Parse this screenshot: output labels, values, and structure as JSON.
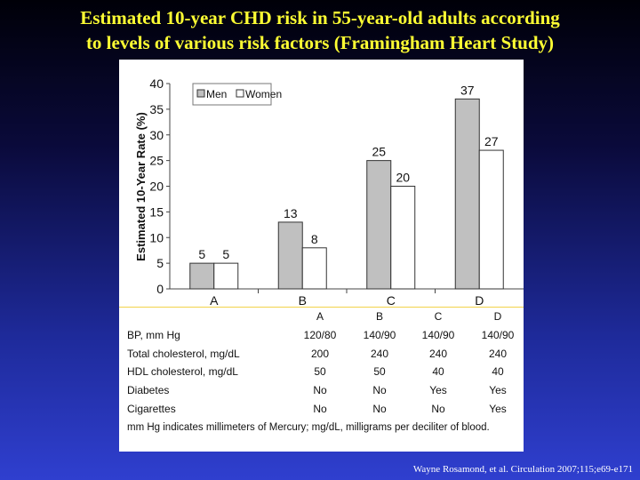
{
  "slide": {
    "title_line1": "Estimated 10-year CHD risk in 55-year-old adults according",
    "title_line2": "to levels of various risk factors (Framingham Heart Study)",
    "source": "Wayne Rosamond, et al. Circulation 2007;115;e69-e171"
  },
  "colors": {
    "title": "#ffff33",
    "men_bar": "#c0c0c0",
    "women_bar": "#ffffff",
    "table_rule": "#f2d24a"
  },
  "chart_data": {
    "type": "bar",
    "categories": [
      "A",
      "B",
      "C",
      "D"
    ],
    "series": [
      {
        "name": "Men",
        "values": [
          5,
          13,
          25,
          37
        ]
      },
      {
        "name": "Women",
        "values": [
          5,
          8,
          20,
          27
        ]
      }
    ],
    "ylabel": "Estimated 10-Year Rate (%)",
    "xlabel": "",
    "ylim": [
      0,
      40
    ],
    "yticks": [
      0,
      5,
      10,
      15,
      20,
      25,
      30,
      35,
      40
    ],
    "legend_position": "top-left",
    "grid": false
  },
  "table": {
    "columns": [
      "A",
      "B",
      "C",
      "D"
    ],
    "rows": [
      {
        "label": "BP, mm Hg",
        "values": [
          "120/80",
          "140/90",
          "140/90",
          "140/90"
        ]
      },
      {
        "label": "Total cholesterol, mg/dL",
        "values": [
          "200",
          "240",
          "240",
          "240"
        ]
      },
      {
        "label": "HDL cholesterol, mg/dL",
        "values": [
          "50",
          "50",
          "40",
          "40"
        ]
      },
      {
        "label": "Diabetes",
        "values": [
          "No",
          "No",
          "Yes",
          "Yes"
        ]
      },
      {
        "label": "Cigarettes",
        "values": [
          "No",
          "No",
          "No",
          "Yes"
        ]
      }
    ],
    "footnote": "mm Hg indicates millimeters of Mercury; mg/dL, milligrams per deciliter of blood."
  }
}
